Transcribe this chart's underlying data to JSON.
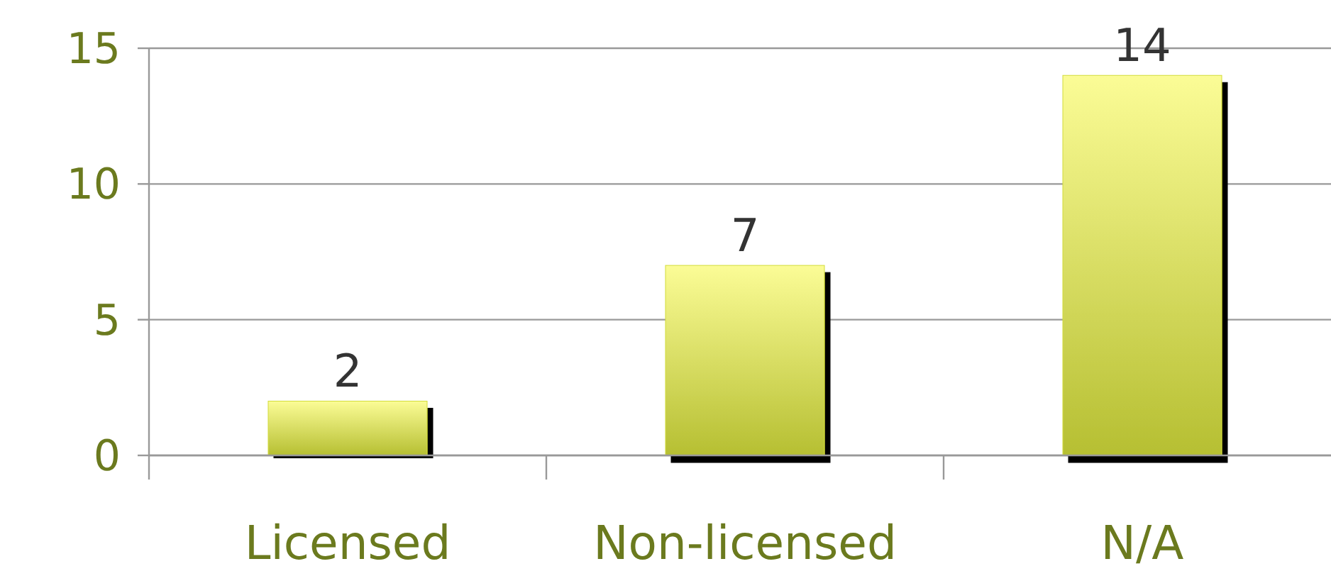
{
  "chart_data": {
    "type": "bar",
    "categories": [
      "Licensed",
      "Non-licensed",
      "N/A"
    ],
    "values": [
      2,
      7,
      14
    ],
    "color": "#d2dc3a",
    "ylim": [
      0,
      15
    ],
    "yticks": [
      0,
      5,
      10,
      15
    ],
    "grid": "y",
    "data_labels": true
  }
}
